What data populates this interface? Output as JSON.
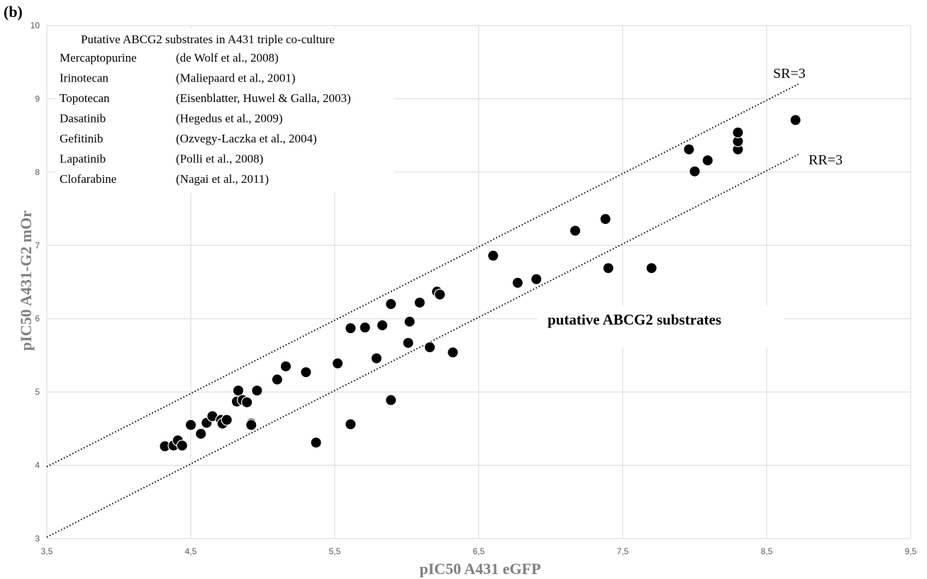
{
  "chart_data": {
    "type": "scatter",
    "panel_label": "(b)",
    "title": "",
    "xlabel": "pIC50 A431 eGFP",
    "ylabel": "pIC50 A431-G2 mOr",
    "xlim": [
      3.5,
      9.5
    ],
    "ylim": [
      3,
      10
    ],
    "x_ticks": [
      3.5,
      4.5,
      5.5,
      6.5,
      7.5,
      8.5,
      9.5
    ],
    "x_tick_labels": [
      "3,5",
      "4,5",
      "5,5",
      "6,5",
      "7,5",
      "8,5",
      "9,5"
    ],
    "y_ticks": [
      3,
      4,
      5,
      6,
      7,
      8,
      9,
      10
    ],
    "y_tick_labels": [
      "3",
      "4",
      "5",
      "6",
      "7",
      "8",
      "9",
      "10"
    ],
    "grid": true,
    "points": [
      [
        4.32,
        4.26
      ],
      [
        4.38,
        4.27
      ],
      [
        4.41,
        4.34
      ],
      [
        4.44,
        4.27
      ],
      [
        4.5,
        4.55
      ],
      [
        4.57,
        4.43
      ],
      [
        4.61,
        4.58
      ],
      [
        4.65,
        4.67
      ],
      [
        4.71,
        4.62
      ],
      [
        4.72,
        4.57
      ],
      [
        4.75,
        4.62
      ],
      [
        4.82,
        4.87
      ],
      [
        4.83,
        5.02
      ],
      [
        4.86,
        4.89
      ],
      [
        4.89,
        4.86
      ],
      [
        4.92,
        4.57
      ],
      [
        4.92,
        4.55
      ],
      [
        4.96,
        5.02
      ],
      [
        5.1,
        5.17
      ],
      [
        5.16,
        5.35
      ],
      [
        5.3,
        5.27
      ],
      [
        5.37,
        4.31
      ],
      [
        5.52,
        5.39
      ],
      [
        5.61,
        5.87
      ],
      [
        5.61,
        4.56
      ],
      [
        5.71,
        5.88
      ],
      [
        5.79,
        5.46
      ],
      [
        5.83,
        5.91
      ],
      [
        5.89,
        4.89
      ],
      [
        5.89,
        6.2
      ],
      [
        6.01,
        5.67
      ],
      [
        6.02,
        5.96
      ],
      [
        6.09,
        6.22
      ],
      [
        6.16,
        5.61
      ],
      [
        6.21,
        6.37
      ],
      [
        6.23,
        6.33
      ],
      [
        6.32,
        5.54
      ],
      [
        6.6,
        6.86
      ],
      [
        6.77,
        6.49
      ],
      [
        6.9,
        6.54
      ],
      [
        7.17,
        7.2
      ],
      [
        7.38,
        7.36
      ],
      [
        7.4,
        6.69
      ],
      [
        7.7,
        6.69
      ],
      [
        7.96,
        8.31
      ],
      [
        8.0,
        8.01
      ],
      [
        8.09,
        8.16
      ],
      [
        8.3,
        8.31
      ],
      [
        8.3,
        8.42
      ],
      [
        8.3,
        8.54
      ],
      [
        8.7,
        8.71
      ]
    ],
    "reference_lines": [
      {
        "label": "SR=3",
        "x": [
          3.5,
          8.72
        ],
        "y": [
          3.98,
          9.2
        ]
      },
      {
        "label": "RR=3",
        "x": [
          3.5,
          8.72
        ],
        "y": [
          3.02,
          8.24
        ]
      }
    ],
    "legend": {
      "heading": "Putative ABCG2 substrates in A431 triple co-culture",
      "entries": [
        {
          "drug": "Mercaptopurine",
          "ref": "(de Wolf et al., 2008)"
        },
        {
          "drug": "Irinotecan",
          "ref": "(Maliepaard et al., 2001)"
        },
        {
          "drug": "Topotecan",
          "ref": "(Eisenblatter, Huwel & Galla, 2003)"
        },
        {
          "drug": "Dasatinib",
          "ref": "(Hegedus et al., 2009)"
        },
        {
          "drug": "Gefitinib",
          "ref": "(Ozvegy-Laczka et al., 2004)"
        },
        {
          "drug": "Lapatinib",
          "ref": "(Polli et al., 2008)"
        },
        {
          "drug": "Clofarabine",
          "ref": "(Nagai et al., 2011)"
        }
      ]
    },
    "annotations": {
      "sr_label": "SR=3",
      "rr_label": "RR=3",
      "region_label": "putative ABCG2 substrates"
    }
  }
}
